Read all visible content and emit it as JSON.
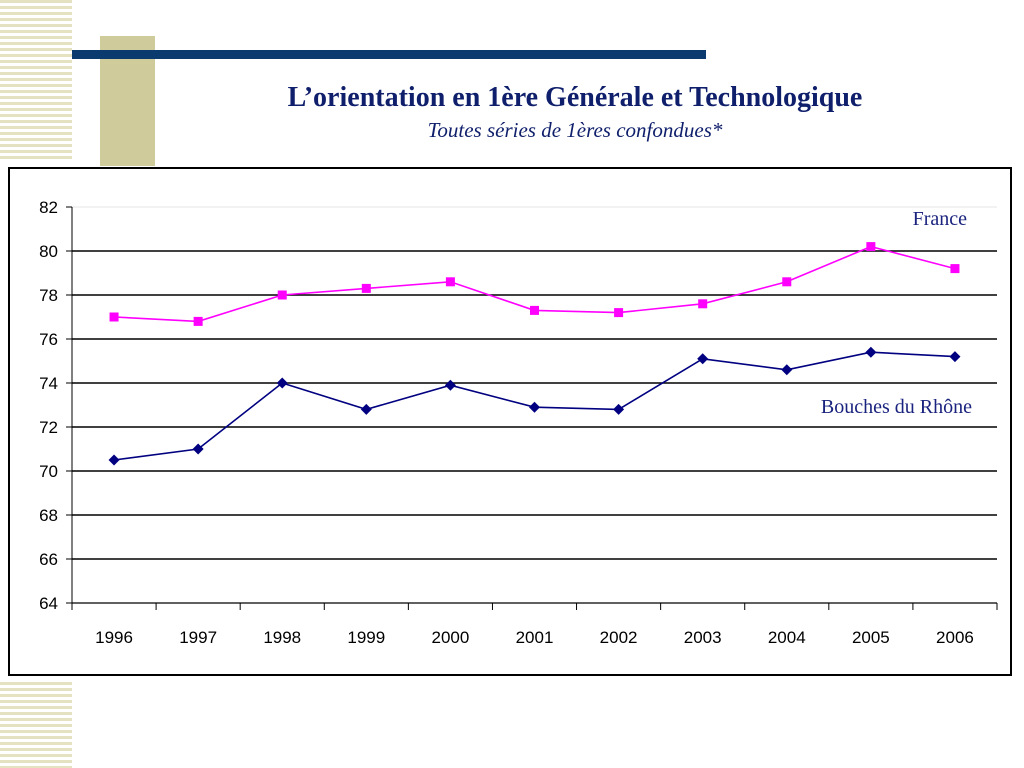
{
  "slide": {
    "title": "L’orientation en 1ère Générale et Technologique",
    "subtitle": "Toutes séries de 1ères confondues*"
  },
  "colors": {
    "navy": "#0b3a6e",
    "france": "#ff00ff",
    "rhone": "#000080"
  },
  "chart_data": {
    "type": "line",
    "title": "",
    "xlabel": "",
    "ylabel": "",
    "categories": [
      "1996",
      "1997",
      "1998",
      "1999",
      "2000",
      "2001",
      "2002",
      "2003",
      "2004",
      "2005",
      "2006"
    ],
    "ylim": [
      64,
      82
    ],
    "yticks": [
      64,
      66,
      68,
      70,
      72,
      74,
      76,
      78,
      80,
      82
    ],
    "ytick_labels": [
      "64",
      "66",
      "68",
      "70",
      "72",
      "74",
      "76",
      "78",
      "80",
      "82"
    ],
    "grid": true,
    "series": [
      {
        "name": "France",
        "color": "#ff00ff",
        "marker": "square",
        "values": [
          77.0,
          76.8,
          78.0,
          78.3,
          78.6,
          77.3,
          77.2,
          77.6,
          78.6,
          80.2,
          79.2
        ]
      },
      {
        "name": "Bouches du Rhône",
        "color": "#000080",
        "marker": "diamond",
        "values": [
          70.5,
          71.0,
          74.0,
          72.8,
          73.9,
          72.9,
          72.8,
          75.1,
          74.6,
          75.4,
          75.2
        ]
      }
    ]
  }
}
